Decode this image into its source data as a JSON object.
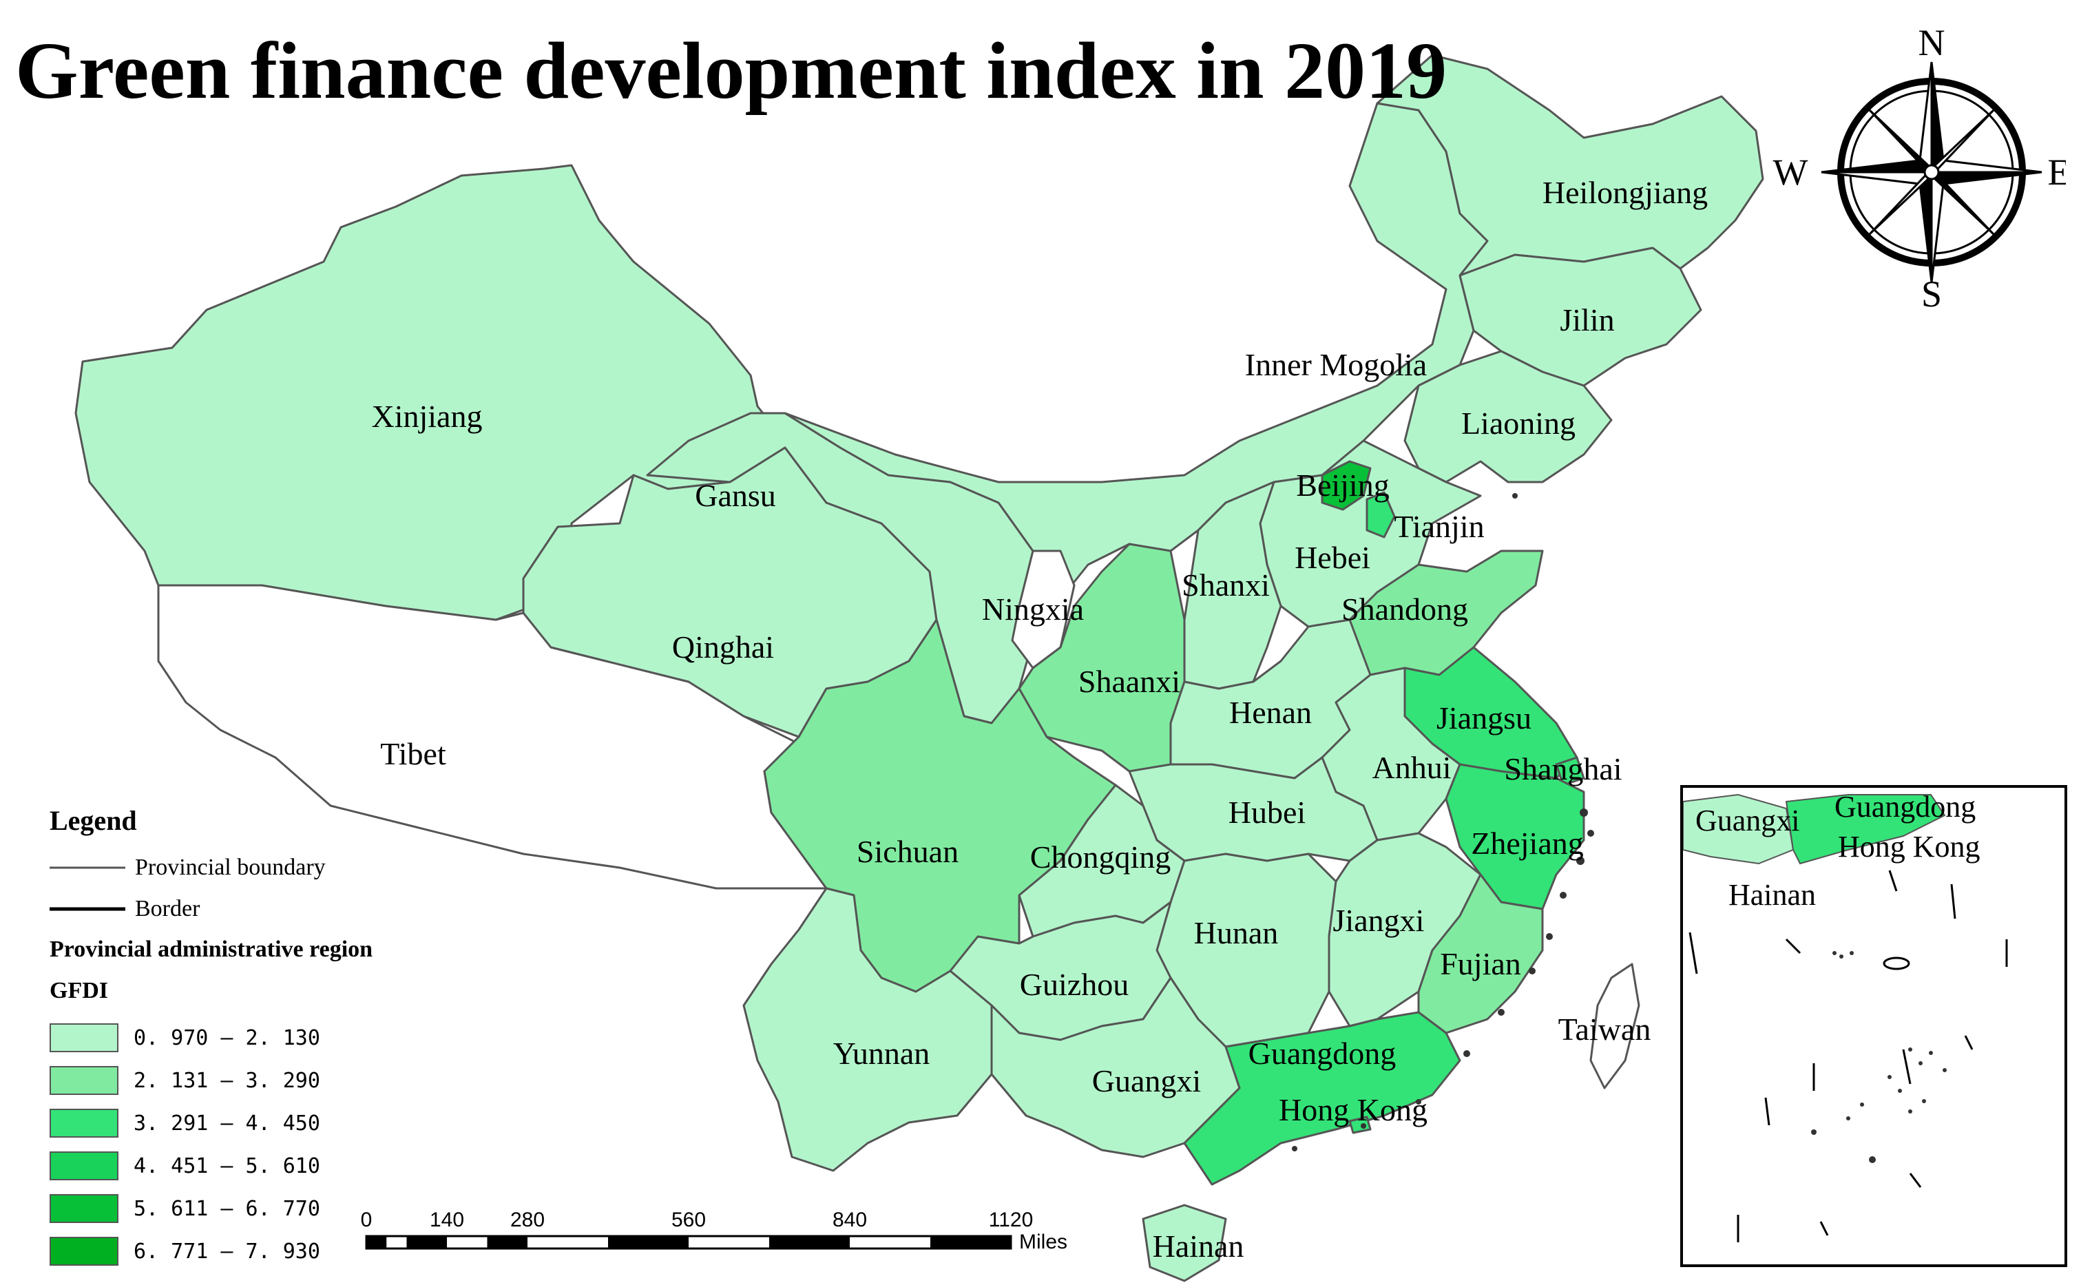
{
  "title": "Green finance development index in 2019",
  "compass": {
    "n": "N",
    "s": "S",
    "e": "E",
    "w": "W"
  },
  "colors": {
    "class1": "#b3f5cb",
    "class2": "#80eba0",
    "class3": "#33e377",
    "class4": "#18d25a",
    "class5": "#08c038",
    "class6": "#00b020",
    "no_data": "#ffffff",
    "boundary": "#555555",
    "coast": "#333333"
  },
  "legend": {
    "heading": "Legend",
    "boundary_label": "Provincial boundary",
    "border_label": "Border",
    "region_label": "Provincial administrative region",
    "field_label": "GFDI",
    "classes": [
      {
        "label": "0. 970 – 2. 130",
        "color": "#b3f5cb"
      },
      {
        "label": "2. 131 – 3. 290",
        "color": "#80eba0"
      },
      {
        "label": "3. 291 – 4. 450",
        "color": "#33e377"
      },
      {
        "label": "4. 451 – 5. 610",
        "color": "#18d25a"
      },
      {
        "label": "5. 611 – 6. 770",
        "color": "#08c038"
      },
      {
        "label": "6. 771 – 7. 930",
        "color": "#00b020"
      }
    ]
  },
  "scalebar": {
    "ticks": [
      "0",
      "140",
      "280",
      "560",
      "840",
      "1120"
    ],
    "tick_values": [
      0,
      140,
      280,
      560,
      840,
      1120
    ],
    "unit": "Miles"
  },
  "provinces": [
    {
      "name": "Xinjiang",
      "class": 1
    },
    {
      "name": "Tibet",
      "class": 0
    },
    {
      "name": "Qinghai",
      "class": 1
    },
    {
      "name": "Gansu",
      "class": 1
    },
    {
      "name": "Inner Mogolia",
      "class": 1
    },
    {
      "name": "Heilongjiang",
      "class": 1
    },
    {
      "name": "Jilin",
      "class": 1
    },
    {
      "name": "Liaoning",
      "class": 1
    },
    {
      "name": "Beijing",
      "class": 5
    },
    {
      "name": "Tianjin",
      "class": 3
    },
    {
      "name": "Hebei",
      "class": 1
    },
    {
      "name": "Shanxi",
      "class": 1
    },
    {
      "name": "Ningxia",
      "class": 0
    },
    {
      "name": "Shaanxi",
      "class": 2
    },
    {
      "name": "Shandong",
      "class": 2
    },
    {
      "name": "Henan",
      "class": 1
    },
    {
      "name": "Jiangsu",
      "class": 3
    },
    {
      "name": "Anhui",
      "class": 1
    },
    {
      "name": "Shanghai",
      "class": 3
    },
    {
      "name": "Hubei",
      "class": 1
    },
    {
      "name": "Sichuan",
      "class": 2
    },
    {
      "name": "Chongqing",
      "class": 1
    },
    {
      "name": "Zhejiang",
      "class": 3
    },
    {
      "name": "Hunan",
      "class": 1
    },
    {
      "name": "Jiangxi",
      "class": 1
    },
    {
      "name": "Guizhou",
      "class": 1
    },
    {
      "name": "Fujian",
      "class": 2
    },
    {
      "name": "Yunnan",
      "class": 1
    },
    {
      "name": "Guangxi",
      "class": 1
    },
    {
      "name": "Guangdong",
      "class": 3
    },
    {
      "name": "Hong Kong",
      "class": 3
    },
    {
      "name": "Taiwan",
      "class": 0
    },
    {
      "name": "Hainan",
      "class": 1
    }
  ],
  "inset": {
    "labels": [
      "Guangxi",
      "Guangdong",
      "Hong Kong",
      "Hainan"
    ]
  }
}
